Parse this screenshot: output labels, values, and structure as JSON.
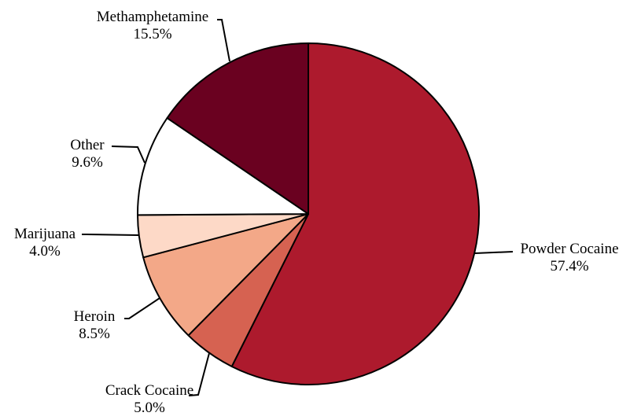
{
  "chart_data": {
    "type": "pie",
    "title": "",
    "unit": "%",
    "start_angle_deg": 0,
    "direction": "clockwise",
    "slices": [
      {
        "name": "Powder Cocaine",
        "value": 57.4,
        "label": "57.4%",
        "color": "#ad1a2d"
      },
      {
        "name": "Crack Cocaine",
        "value": 5.0,
        "label": "5.0%",
        "color": "#d66251"
      },
      {
        "name": "Heroin",
        "value": 8.5,
        "label": "8.5%",
        "color": "#f3a888"
      },
      {
        "name": "Marijuana",
        "value": 4.0,
        "label": "4.0%",
        "color": "#fdd9c7"
      },
      {
        "name": "Other",
        "value": 9.6,
        "label": "9.6%",
        "color": "#ffffff"
      },
      {
        "name": "Methamphetamine",
        "value": 15.5,
        "label": "15.5%",
        "color": "#6a0120"
      }
    ]
  }
}
